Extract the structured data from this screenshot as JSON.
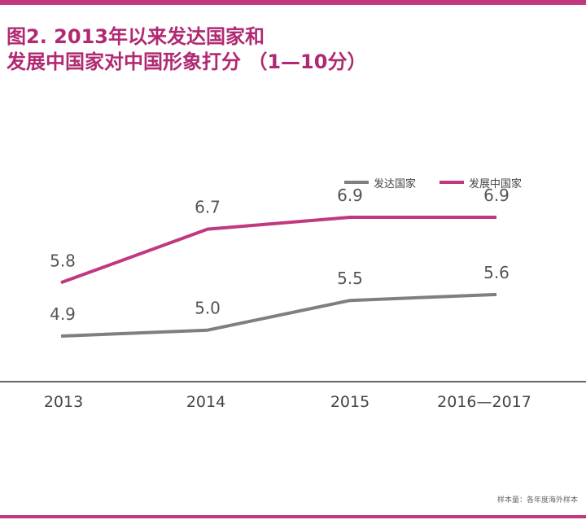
{
  "title": {
    "line1": "图2. 2013年以来发达国家和",
    "line2": "发展中国家对中国形象打分 （1—10分）"
  },
  "footnote": "样本量：各年度海外样本",
  "colors": {
    "accent": "#c0387f",
    "title": "#b02a72",
    "developed": "#7f7f7f",
    "developing": "#c0387f"
  },
  "chart_data": {
    "type": "line",
    "title": "图2. 2013年以来发达国家和发展中国家对中国形象打分 （1—10分）",
    "categories": [
      "2013",
      "2014",
      "2015",
      "2016—2017"
    ],
    "series": [
      {
        "name": "发达国家",
        "color": "#7f7f7f",
        "values": [
          4.9,
          5.0,
          5.5,
          5.6
        ]
      },
      {
        "name": "发展中国家",
        "color": "#c0387f",
        "values": [
          5.8,
          6.7,
          6.9,
          6.9
        ]
      }
    ],
    "value_labels": {
      "发达国家": [
        "4.9",
        "5.0",
        "5.5",
        "5.6"
      ],
      "发展中国家": [
        "5.8",
        "6.7",
        "6.9",
        "6.9"
      ]
    },
    "legend": "top-right",
    "grid": false
  }
}
